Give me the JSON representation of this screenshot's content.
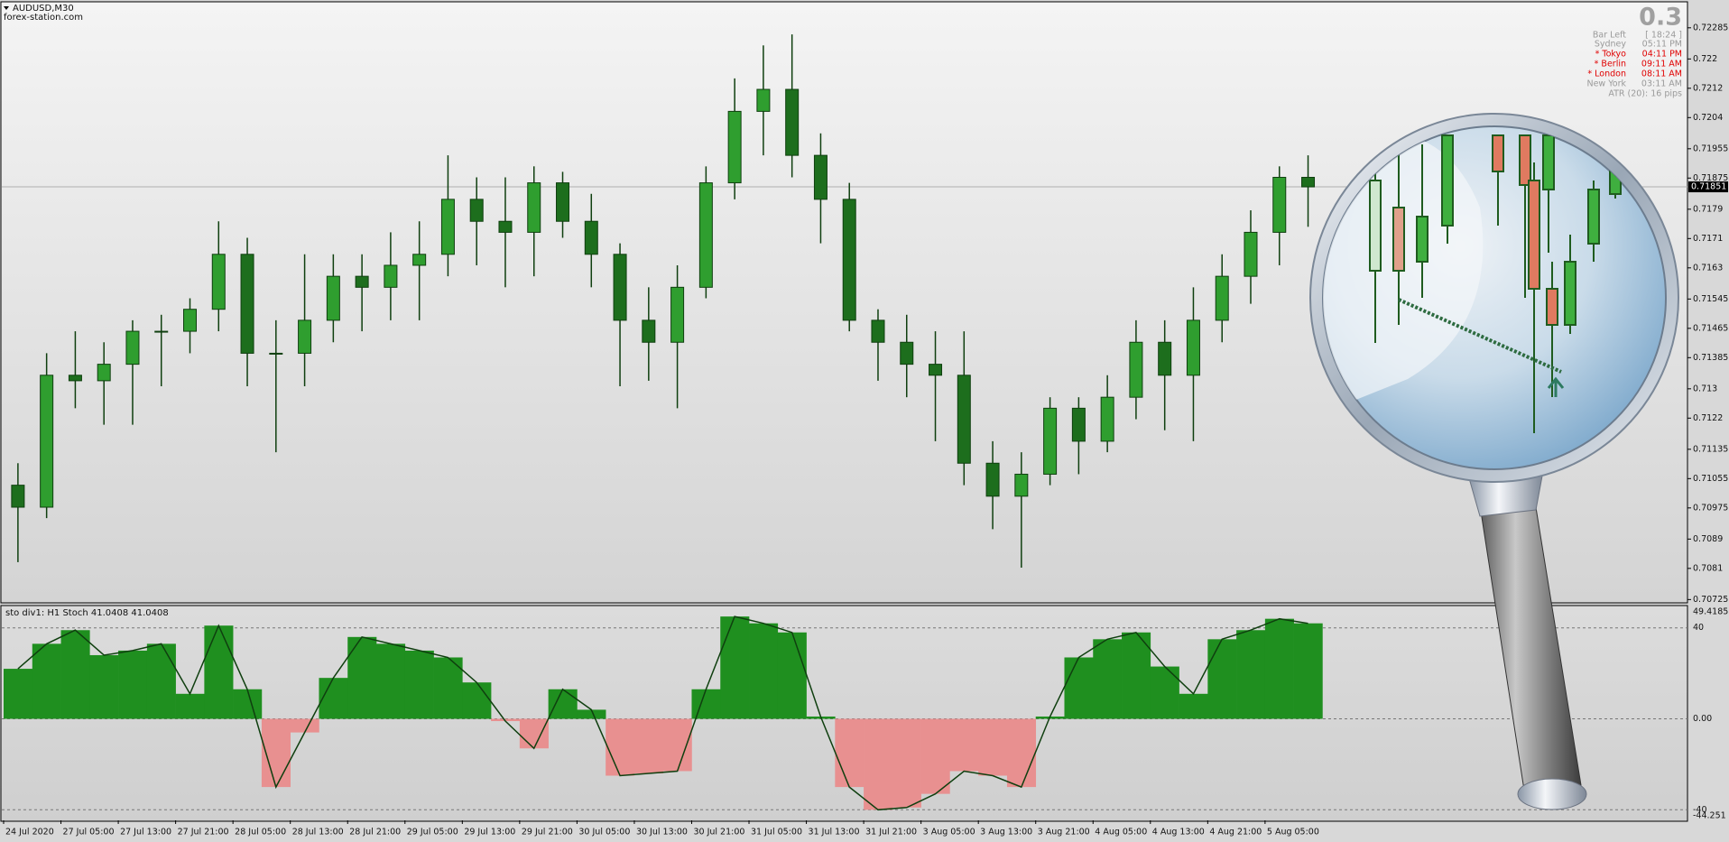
{
  "chart_data": {
    "type": "candlestick",
    "symbol": "AUDUSD,M30",
    "watermark": "forex-station.com",
    "categories": [
      "24 Jul 2020",
      null,
      "27 Jul 05:00",
      null,
      "27 Jul 13:00",
      null,
      "27 Jul 21:00",
      null,
      "28 Jul 05:00",
      null,
      "28 Jul 13:00",
      null,
      "28 Jul 21:00",
      null,
      "29 Jul 05:00",
      null,
      "29 Jul 13:00",
      null,
      "29 Jul 21:00",
      null,
      "30 Jul 05:00",
      null,
      "30 Jul 13:00",
      null,
      "30 Jul 21:00",
      null,
      "31 Jul 05:00",
      null,
      "31 Jul 13:00",
      null,
      "31 Jul 21:00",
      null,
      "3 Aug 05:00",
      null,
      "3 Aug 13:00",
      null,
      "3 Aug 21:00",
      null,
      "4 Aug 05:00",
      null,
      "4 Aug 13:00",
      null,
      "4 Aug 21:00",
      null,
      "5 Aug 05:00",
      null
    ],
    "open": [
      0.71037,
      0.70977,
      0.71337,
      0.71322,
      0.71367,
      0.71457,
      0.71457,
      0.71517,
      0.71667,
      0.71397,
      0.71397,
      0.71487,
      0.71607,
      0.71577,
      0.71637,
      0.71667,
      0.71817,
      0.71757,
      0.71727,
      0.71862,
      0.71757,
      0.71667,
      0.71487,
      0.71427,
      0.71577,
      0.71862,
      0.72057,
      0.72117,
      0.71937,
      0.71817,
      0.71487,
      0.71427,
      0.71367,
      0.71337,
      0.71097,
      0.71007,
      0.71067,
      0.71247,
      0.71157,
      0.71277,
      0.71427,
      0.71337,
      0.71487,
      0.71607,
      0.71727,
      0.71877
    ],
    "high": [
      0.71097,
      0.71397,
      0.71457,
      0.71427,
      0.71487,
      0.71502,
      0.71547,
      0.71757,
      0.71712,
      0.71487,
      0.71667,
      0.71667,
      0.71667,
      0.71727,
      0.71757,
      0.71937,
      0.71877,
      0.71877,
      0.71907,
      0.71892,
      0.71832,
      0.71697,
      0.71577,
      0.71637,
      0.71907,
      0.72147,
      0.72237,
      0.72267,
      0.71997,
      0.71862,
      0.71517,
      0.71502,
      0.71457,
      0.71457,
      0.71157,
      0.71127,
      0.71277,
      0.71277,
      0.71337,
      0.71487,
      0.71487,
      0.71577,
      0.71667,
      0.71787,
      0.71907,
      0.71937
    ],
    "low": [
      0.70827,
      0.70947,
      0.71247,
      0.71202,
      0.71202,
      0.71307,
      0.71397,
      0.71457,
      0.71307,
      0.71127,
      0.71307,
      0.71427,
      0.71457,
      0.71487,
      0.71487,
      0.71607,
      0.71637,
      0.71577,
      0.71607,
      0.71712,
      0.71577,
      0.71307,
      0.71322,
      0.71247,
      0.71547,
      0.71817,
      0.71937,
      0.71877,
      0.71697,
      0.71457,
      0.71322,
      0.71277,
      0.71157,
      0.71037,
      0.70917,
      0.70812,
      0.71037,
      0.71067,
      0.71127,
      0.71217,
      0.71187,
      0.71157,
      0.71427,
      0.71532,
      0.71637,
      0.71742
    ],
    "close": [
      0.70977,
      0.71337,
      0.71322,
      0.71367,
      0.71457,
      0.71457,
      0.71517,
      0.71667,
      0.71397,
      0.71397,
      0.71487,
      0.71607,
      0.71577,
      0.71637,
      0.71667,
      0.71817,
      0.71757,
      0.71727,
      0.71862,
      0.71757,
      0.71667,
      0.71487,
      0.71427,
      0.71577,
      0.71862,
      0.72057,
      0.72117,
      0.71937,
      0.71817,
      0.71487,
      0.71427,
      0.71367,
      0.71337,
      0.71097,
      0.71007,
      0.71067,
      0.71247,
      0.71157,
      0.71277,
      0.71427,
      0.71337,
      0.71487,
      0.71607,
      0.71727,
      0.71877,
      0.71851
    ],
    "up_color": "#2f9e2f",
    "down_color": "#1d6e1d",
    "ylim": [
      0.70716,
      0.72351
    ],
    "yticks": [
      0.72285,
      0.722,
      0.7212,
      0.7204,
      0.71955,
      0.71875,
      0.7179,
      0.7171,
      0.7163,
      0.71545,
      0.71465,
      0.71385,
      0.713,
      0.7122,
      0.71135,
      0.71055,
      0.70975,
      0.7089,
      0.7081,
      0.70725
    ],
    "current_price": 0.71851,
    "indicator": {
      "type": "bar",
      "title": "sto div1: H1 Stoch 41.0408 41.0408",
      "values": [
        22,
        33,
        39,
        28,
        30,
        33,
        11,
        41,
        13,
        -30,
        -6,
        18,
        36,
        33,
        30,
        27,
        16,
        -1,
        -13,
        13,
        4,
        -25,
        -24,
        -23,
        13,
        45,
        42,
        38,
        1,
        -30,
        -40,
        -39,
        -33,
        -23,
        -25,
        -30,
        1,
        27,
        35,
        38,
        23,
        11,
        35,
        39,
        44,
        42
      ],
      "ylim": [
        -44.251,
        49.4185
      ],
      "yticks": [
        40,
        {
          "value": 0,
          "label": "0.00"
        },
        -40
      ],
      "pos_color": "#1f8f1f",
      "neg_color": "#e89090",
      "grid": true
    }
  },
  "info_panel": {
    "big_value": "0.3",
    "rows": [
      [
        "Bar Left",
        "[ 18:24 ]"
      ],
      [
        "Sydney",
        "05:11 PM"
      ],
      [
        "* Tokyo",
        "04:11 PM"
      ],
      [
        "* Berlin",
        "09:11 AM"
      ],
      [
        "* London",
        "08:11 AM"
      ],
      [
        "New York",
        "03:11 AM"
      ]
    ],
    "footer": "ATR (20): 16 pips"
  }
}
